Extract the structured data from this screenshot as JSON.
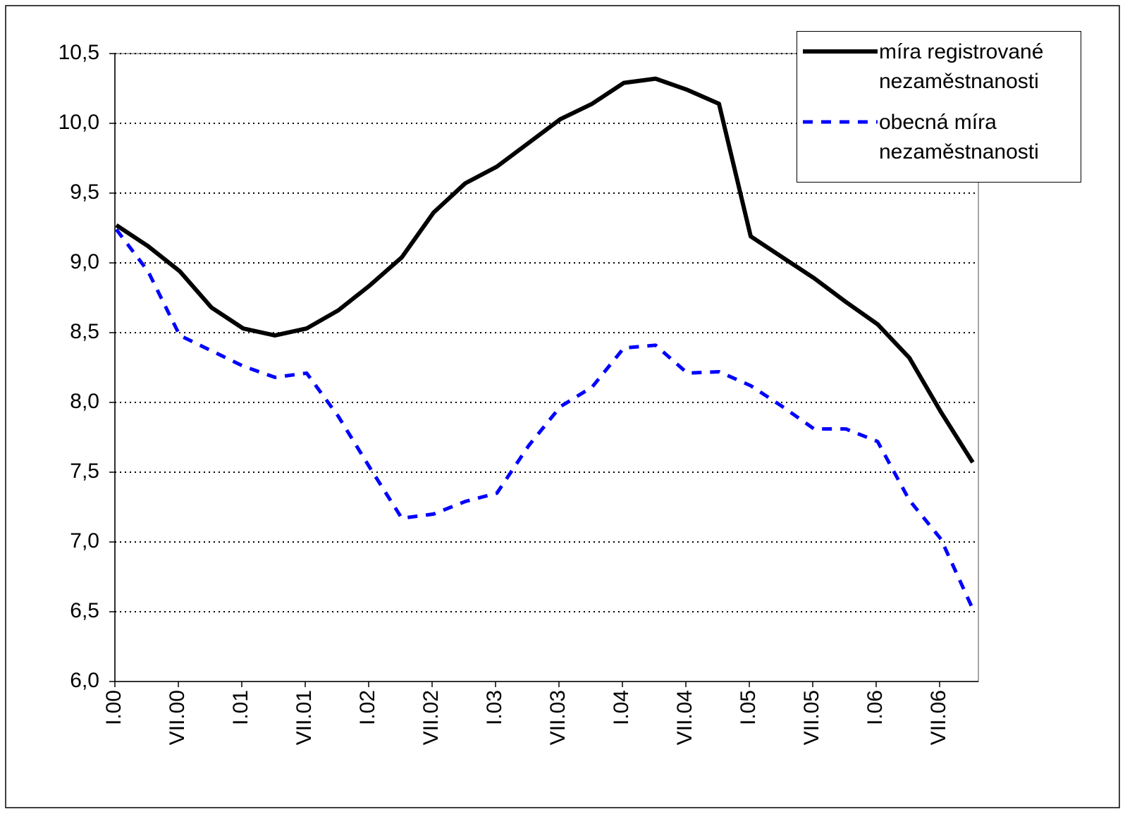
{
  "chart_data": {
    "type": "line",
    "categories": [
      "I.00",
      null,
      "VII.00",
      null,
      "I.01",
      null,
      "VII.01",
      null,
      "I.02",
      null,
      "VII.02",
      null,
      "I.03",
      null,
      "VII.03",
      null,
      "I.04",
      null,
      "VII.04",
      null,
      "I.05",
      null,
      "VII.05",
      null,
      "I.06",
      null,
      "VII.06",
      null
    ],
    "series": [
      {
        "name": "míra registrované nezaměstnanosti",
        "color": "#000000",
        "dash": false,
        "values": [
          9.27,
          9.12,
          8.94,
          8.68,
          8.53,
          8.48,
          8.53,
          8.66,
          8.84,
          9.04,
          9.36,
          9.57,
          9.69,
          9.86,
          10.03,
          10.14,
          10.29,
          10.32,
          10.24,
          10.14,
          9.19,
          9.04,
          8.89,
          8.72,
          8.56,
          8.32,
          7.93,
          7.57
        ]
      },
      {
        "name": "obecná míra nezaměstnanosti",
        "color": "#0000ff",
        "dash": true,
        "values": [
          9.24,
          8.94,
          8.48,
          8.37,
          8.26,
          8.18,
          8.21,
          7.9,
          7.53,
          7.17,
          7.2,
          7.29,
          7.35,
          7.69,
          7.97,
          8.11,
          8.39,
          8.41,
          8.21,
          8.22,
          8.12,
          7.97,
          7.81,
          7.81,
          7.72,
          7.3,
          7.02,
          6.52
        ]
      }
    ],
    "ylim": [
      6.0,
      10.5
    ],
    "yticks": [
      {
        "value": 6.0,
        "label": "6,0"
      },
      {
        "value": 6.5,
        "label": "6,5"
      },
      {
        "value": 7.0,
        "label": "7,0"
      },
      {
        "value": 7.5,
        "label": "7,5"
      },
      {
        "value": 8.0,
        "label": "8,0"
      },
      {
        "value": 8.5,
        "label": "8,5"
      },
      {
        "value": 9.0,
        "label": "9,0"
      },
      {
        "value": 9.5,
        "label": "9,5"
      },
      {
        "value": 10.0,
        "label": "10,0"
      },
      {
        "value": 10.5,
        "label": "10,5"
      }
    ],
    "grid": true,
    "legend": "top-right"
  }
}
